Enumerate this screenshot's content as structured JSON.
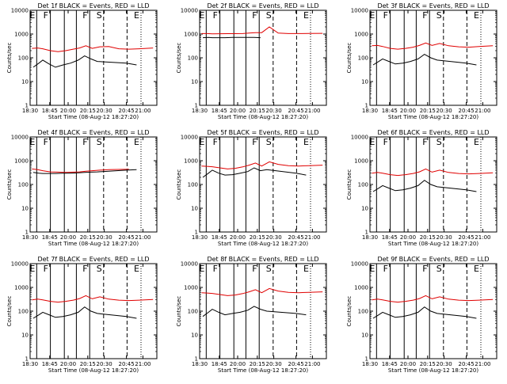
{
  "chart_data": {
    "type": "line",
    "yscale": "log",
    "ylim": [
      1,
      10000
    ],
    "y_ticks": [
      "1",
      "10",
      "100",
      "1000",
      "10000"
    ],
    "xlim": [
      "18:30",
      "21:10"
    ],
    "x_ticks": [
      "18:30",
      "18:45",
      "20:00",
      "20:15",
      "20:30",
      "20:45",
      "21:00"
    ],
    "xlabel": "Start Time (08-Aug-12 18:27:20)",
    "ylabel": "Counts/sec",
    "legend": "BLACK = Events, RED = LLD",
    "series_colors": {
      "events": "#000000",
      "lld": "#e00000"
    },
    "markers": [
      {
        "label": "E",
        "style": "solid"
      },
      {
        "label": "F",
        "style": "solid"
      },
      {
        "label": "",
        "style": "solid"
      },
      {
        "label": "",
        "style": "solid"
      },
      {
        "label": "F",
        "style": "solid"
      },
      {
        "label": "S",
        "style": "dashed"
      },
      {
        "label": "",
        "style": "dashed"
      },
      {
        "label": "E",
        "style": "dotted"
      }
    ],
    "panels": [
      {
        "title": "Det 1f BLACK = Events, RED = LLD",
        "lld": [
          250,
          260,
          240,
          200,
          180,
          200,
          230,
          260,
          320,
          250,
          290,
          300,
          240,
          230,
          240,
          260
        ],
        "events": [
          40,
          60,
          80,
          55,
          40,
          50,
          60,
          80,
          120,
          90,
          70,
          60,
          50
        ]
      },
      {
        "title": "Det 2f BLACK = Events, RED = LLD",
        "lld": [
          1050,
          1050,
          1020,
          1030,
          1040,
          1040,
          1050,
          1100,
          1150,
          1150,
          2000,
          1100,
          1050,
          1050,
          1060,
          1070
        ],
        "events": [
          700,
          720,
          700,
          700,
          700,
          720,
          720,
          720,
          720,
          700
        ]
      },
      {
        "title": "Det 3f BLACK = Events, RED = LLD",
        "lld": [
          320,
          330,
          300,
          250,
          230,
          250,
          280,
          330,
          420,
          330,
          400,
          320,
          290,
          280,
          300,
          320
        ],
        "events": [
          50,
          70,
          90,
          70,
          55,
          60,
          70,
          90,
          140,
          100,
          80,
          60,
          50
        ]
      },
      {
        "title": "Det 4f BLACK = Events, RED = LLD",
        "lld": [
          450,
          420,
          380,
          340,
          330,
          320,
          330,
          340,
          360,
          380,
          400,
          420,
          430,
          440
        ],
        "events": [
          320,
          300,
          290,
          290,
          290,
          300,
          300,
          310,
          320,
          330,
          340,
          400,
          420
        ]
      },
      {
        "title": "Det 5f BLACK = Events, RED = LLD",
        "lld": [
          600,
          580,
          560,
          500,
          450,
          480,
          550,
          650,
          800,
          600,
          900,
          700,
          620,
          600,
          620,
          650
        ],
        "events": [
          200,
          300,
          400,
          300,
          250,
          260,
          300,
          350,
          500,
          380,
          420,
          300,
          250
        ]
      },
      {
        "title": "Det 6f BLACK = Events, RED = LLD",
        "lld": [
          300,
          320,
          300,
          260,
          240,
          260,
          290,
          340,
          450,
          330,
          400,
          320,
          290,
          280,
          290,
          310
        ],
        "events": [
          50,
          70,
          90,
          70,
          55,
          60,
          70,
          90,
          150,
          100,
          80,
          60,
          50
        ]
      },
      {
        "title": "Det 7f BLACK = Events, RED = LLD",
        "lld": [
          300,
          320,
          300,
          260,
          240,
          260,
          290,
          340,
          450,
          330,
          400,
          320,
          290,
          280,
          290,
          310
        ],
        "events": [
          50,
          70,
          90,
          70,
          55,
          60,
          70,
          90,
          150,
          100,
          80,
          60,
          50
        ]
      },
      {
        "title": "Det 8f BLACK = Events, RED = LLD",
        "lld": [
          600,
          580,
          560,
          500,
          450,
          480,
          550,
          650,
          800,
          600,
          900,
          700,
          620,
          600,
          620,
          650
        ],
        "events": [
          60,
          90,
          120,
          90,
          70,
          80,
          90,
          110,
          160,
          120,
          100,
          80,
          70
        ]
      },
      {
        "title": "Det 9f BLACK = Events, RED = LLD",
        "lld": [
          300,
          320,
          300,
          260,
          240,
          260,
          290,
          340,
          450,
          330,
          400,
          320,
          290,
          280,
          290,
          310
        ],
        "events": [
          50,
          70,
          90,
          70,
          55,
          60,
          70,
          90,
          150,
          100,
          80,
          60,
          50
        ]
      }
    ]
  }
}
